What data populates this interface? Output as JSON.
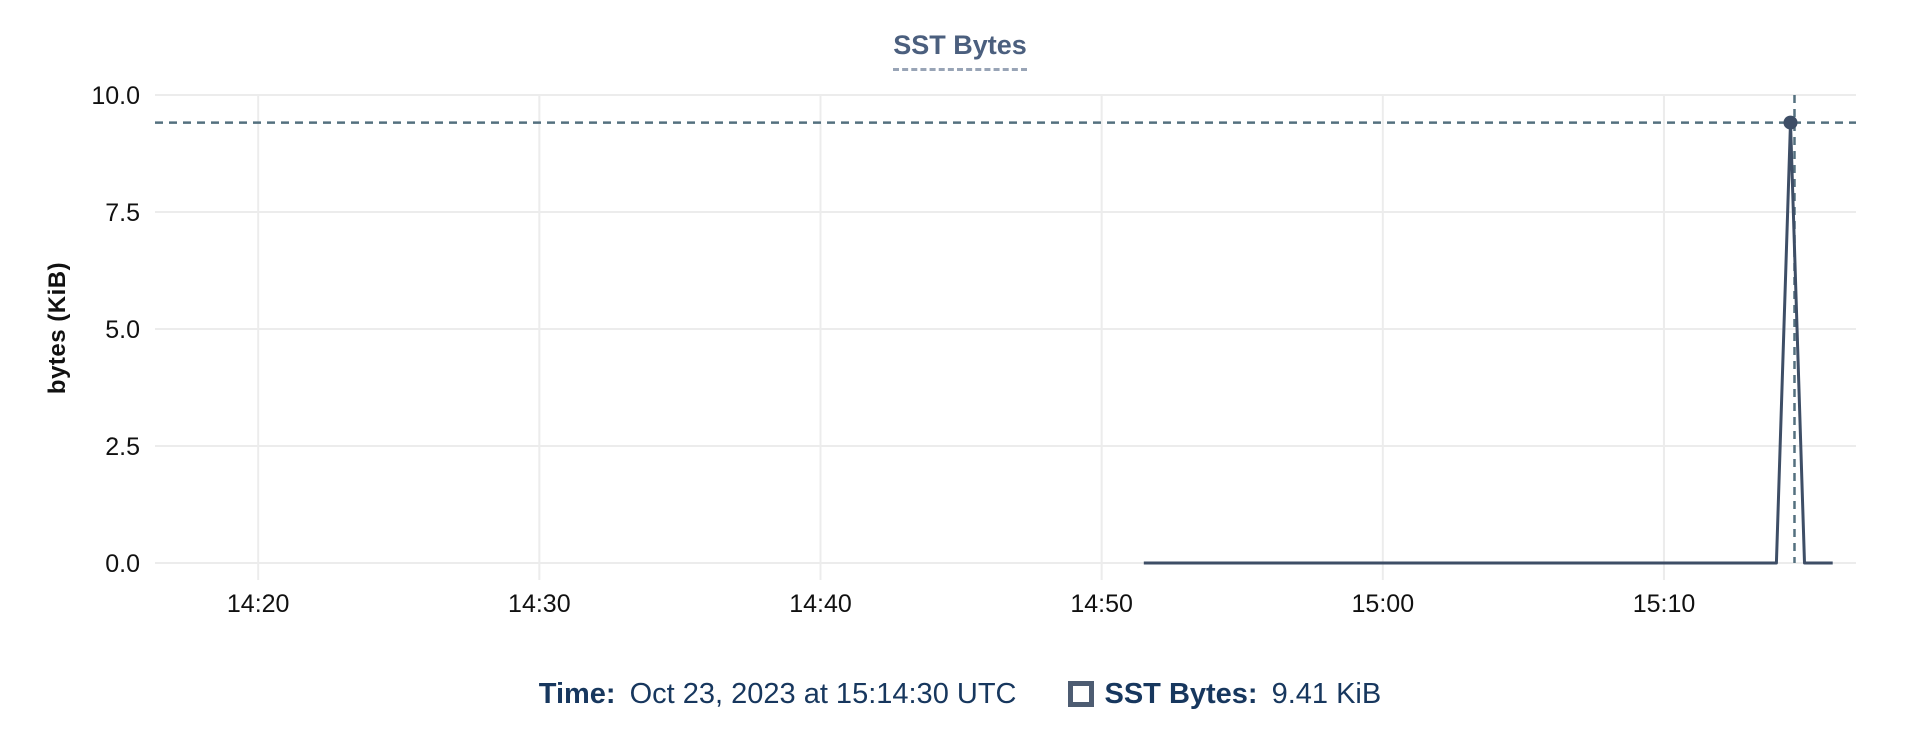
{
  "chart": {
    "title": "SST Bytes",
    "y_axis_label": "bytes (KiB)"
  },
  "tooltip": {
    "time_label": "Time:",
    "time_value": "Oct 23, 2023 at 15:14:30 UTC",
    "series_label": "SST Bytes:",
    "series_value": "9.41 KiB",
    "swatch_icon": "square-outline"
  },
  "colors": {
    "navy_text": "#17375e",
    "title_slate": "#4b5f7e",
    "title_underline": "#98a4b6",
    "series_line": "#3e4e66",
    "crosshair": "#54707f",
    "gridline": "#ececec",
    "tick_text": "#111111",
    "swatch_border": "#4d5c72"
  },
  "chart_data": {
    "type": "line",
    "title": "SST Bytes",
    "xlabel": "",
    "ylabel": "bytes (KiB)",
    "x_unit": "minutes after 14:00 UTC",
    "x_domain": [
      16.33,
      76.83
    ],
    "y_domain": [
      0,
      10
    ],
    "grid": true,
    "legend_position": "bottom",
    "x_ticks": [
      {
        "v": 20,
        "label": "14:20"
      },
      {
        "v": 30,
        "label": "14:30"
      },
      {
        "v": 40,
        "label": "14:40"
      },
      {
        "v": 50,
        "label": "14:50"
      },
      {
        "v": 60,
        "label": "15:00"
      },
      {
        "v": 70,
        "label": "15:10"
      }
    ],
    "y_ticks": [
      {
        "v": 0,
        "label": "0.0"
      },
      {
        "v": 2.5,
        "label": "2.5"
      },
      {
        "v": 5,
        "label": "5.0"
      },
      {
        "v": 7.5,
        "label": "7.5"
      },
      {
        "v": 10,
        "label": "10.0"
      }
    ],
    "series": [
      {
        "name": "SST Bytes",
        "color": "#3e4e66",
        "points": [
          {
            "time": "14:51:30",
            "x": 51.5,
            "y": 0
          },
          {
            "time": "15:14:00",
            "x": 74.0,
            "y": 0
          },
          {
            "time": "15:14:30",
            "x": 74.5,
            "y": 9.41
          },
          {
            "time": "15:15:00",
            "x": 75.0,
            "y": 0
          },
          {
            "time": "15:16:00",
            "x": 76.0,
            "y": 0
          }
        ]
      }
    ],
    "hover_point": {
      "series": "SST Bytes",
      "x": 74.5,
      "y": 9.41,
      "time": "Oct 23, 2023 at 15:14:30 UTC",
      "value": "9.41 KiB"
    }
  }
}
